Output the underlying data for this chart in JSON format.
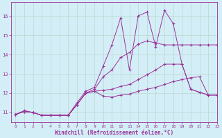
{
  "xlabel": "Windchill (Refroidissement éolien,°C)",
  "bg_color": "#d4eef7",
  "grid_color": "#b8d8d0",
  "line_color": "#993399",
  "xlim": [
    -0.5,
    23
  ],
  "ylim": [
    10.5,
    16.7
  ],
  "yticks": [
    11,
    12,
    13,
    14,
    15,
    16
  ],
  "xticks": [
    0,
    1,
    2,
    3,
    4,
    5,
    6,
    7,
    8,
    9,
    10,
    11,
    12,
    13,
    14,
    15,
    16,
    17,
    18,
    19,
    20,
    21,
    22,
    23
  ],
  "series": {
    "spiky_x": [
      0,
      1,
      2,
      3,
      4,
      5,
      6,
      7,
      8,
      9,
      10,
      11,
      12,
      13,
      14,
      15,
      16,
      17,
      18,
      19,
      20,
      21,
      22,
      23
    ],
    "spiky_y": [
      10.9,
      11.1,
      11.0,
      10.85,
      10.85,
      10.85,
      10.85,
      11.5,
      12.1,
      12.3,
      13.4,
      14.5,
      15.9,
      13.2,
      16.0,
      16.2,
      14.4,
      16.3,
      15.6,
      13.5,
      12.2,
      12.05,
      11.9,
      11.9
    ],
    "upper_x": [
      0,
      1,
      2,
      3,
      4,
      5,
      6,
      7,
      8,
      9,
      10,
      11,
      12,
      13,
      14,
      15,
      16,
      17,
      18,
      19,
      20,
      21,
      22,
      23
    ],
    "upper_y": [
      10.9,
      11.05,
      11.0,
      10.85,
      10.85,
      10.85,
      10.85,
      11.4,
      12.0,
      12.2,
      12.85,
      13.2,
      13.85,
      14.1,
      14.55,
      14.7,
      14.6,
      14.5,
      14.5,
      14.5,
      14.5,
      14.5,
      14.5,
      14.5
    ],
    "mid_x": [
      0,
      1,
      2,
      3,
      4,
      5,
      6,
      7,
      8,
      9,
      10,
      11,
      12,
      13,
      14,
      15,
      16,
      17,
      18,
      19,
      20,
      21,
      22,
      23
    ],
    "mid_y": [
      10.9,
      11.05,
      11.0,
      10.85,
      10.85,
      10.85,
      10.85,
      11.4,
      12.0,
      12.1,
      12.15,
      12.2,
      12.35,
      12.45,
      12.7,
      12.95,
      13.2,
      13.5,
      13.5,
      13.5,
      12.2,
      12.05,
      11.9,
      11.9
    ],
    "lower_x": [
      0,
      1,
      2,
      3,
      4,
      5,
      6,
      7,
      8,
      9,
      10,
      11,
      12,
      13,
      14,
      15,
      16,
      17,
      18,
      19,
      20,
      21,
      22,
      23
    ],
    "lower_y": [
      10.9,
      11.05,
      11.0,
      10.85,
      10.85,
      10.85,
      10.85,
      11.4,
      12.0,
      12.1,
      11.85,
      11.8,
      11.9,
      11.95,
      12.1,
      12.2,
      12.3,
      12.45,
      12.6,
      12.7,
      12.8,
      12.85,
      11.9,
      11.9
    ]
  }
}
